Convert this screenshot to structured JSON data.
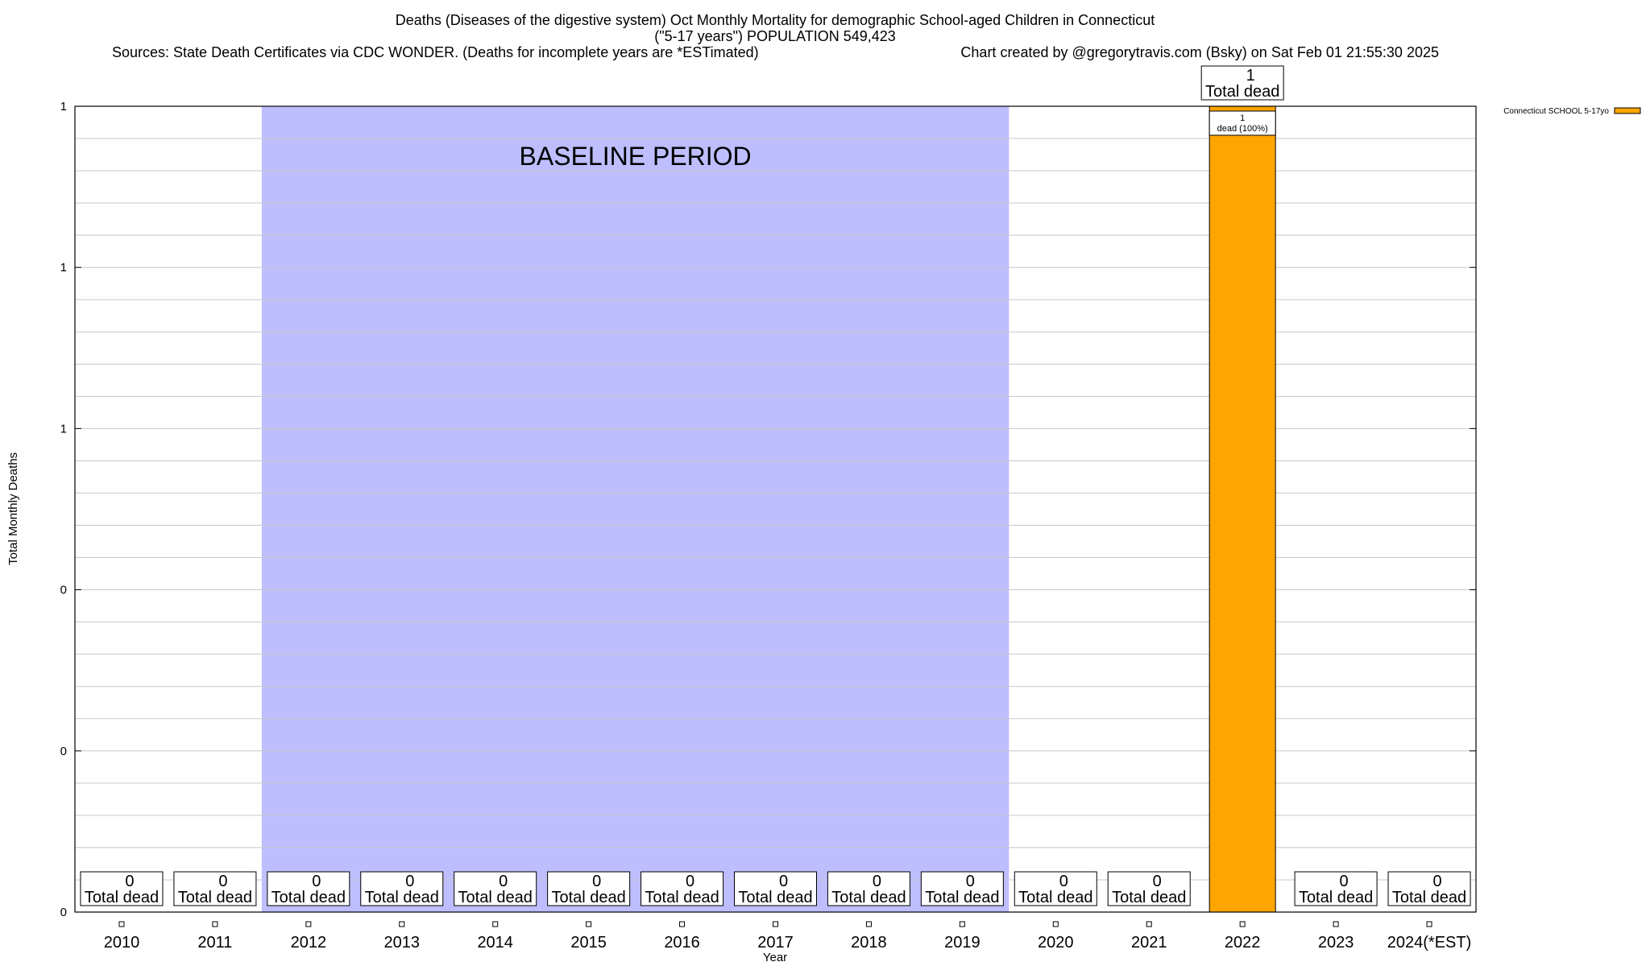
{
  "chart_data": {
    "type": "bar",
    "title": "Deaths (Diseases of the digestive system) Oct Monthly Mortality for demographic School-aged Children in Connecticut",
    "subtitle": "(\"5-17 years\") POPULATION 549,423",
    "source_left": "Sources: State Death Certificates via CDC WONDER. (Deaths for incomplete years are *ESTimated)",
    "source_right": "Chart created by @gregorytravis.com (Bsky) on Sat Feb 01 21:55:30 2025",
    "xlabel": "Year",
    "ylabel": "Total Monthly Deaths",
    "categories": [
      "2010",
      "2011",
      "2012",
      "2013",
      "2014",
      "2015",
      "2016",
      "2017",
      "2018",
      "2019",
      "2020",
      "2021",
      "2022",
      "2023",
      "2024(*EST)"
    ],
    "series": [
      {
        "name": "Connecticut SCHOOL 5-17yo",
        "color": "#FFA500",
        "values": [
          0,
          0,
          0,
          0,
          0,
          0,
          0,
          0,
          0,
          0,
          0,
          0,
          1,
          0,
          0
        ]
      }
    ],
    "total_labels": [
      "0",
      "0",
      "0",
      "0",
      "0",
      "0",
      "0",
      "0",
      "0",
      "0",
      "0",
      "0",
      "1",
      "0",
      "0"
    ],
    "total_suffix": "Total dead",
    "segment_labels": [
      {
        "category": "2022",
        "count": "1",
        "text": "dead (100%)"
      }
    ],
    "yticks": [
      {
        "value": 0,
        "label": "0"
      },
      {
        "value": 0.2,
        "label": "0"
      },
      {
        "value": 0.4,
        "label": "0"
      },
      {
        "value": 0.6,
        "label": "1"
      },
      {
        "value": 0.8,
        "label": "1"
      },
      {
        "value": 1.0,
        "label": "1"
      }
    ],
    "ylim": [
      0,
      1
    ],
    "minor_grid_step": 0.04,
    "grid": true,
    "baseline": {
      "label": "BASELINE PERIOD",
      "start": "2012",
      "end": "2019",
      "color": "#BEBEFF"
    },
    "legend_position": "top-right"
  }
}
